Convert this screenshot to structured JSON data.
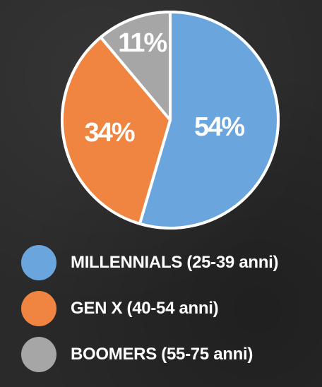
{
  "chart_data": {
    "type": "pie",
    "slices": [
      {
        "label": "MILLENNIALS (25-39 anni)",
        "value": 54,
        "display": "54%",
        "color": "#6aa6dd"
      },
      {
        "label": "GEN X (40-54 anni)",
        "value": 34,
        "display": "34%",
        "color": "#ef8540"
      },
      {
        "label": "BOOMERS (55-75 anni)",
        "value": 11,
        "display": "11%",
        "color": "#a6a6a6"
      }
    ],
    "border_color": "#ffffff",
    "legend_position": "bottom"
  }
}
